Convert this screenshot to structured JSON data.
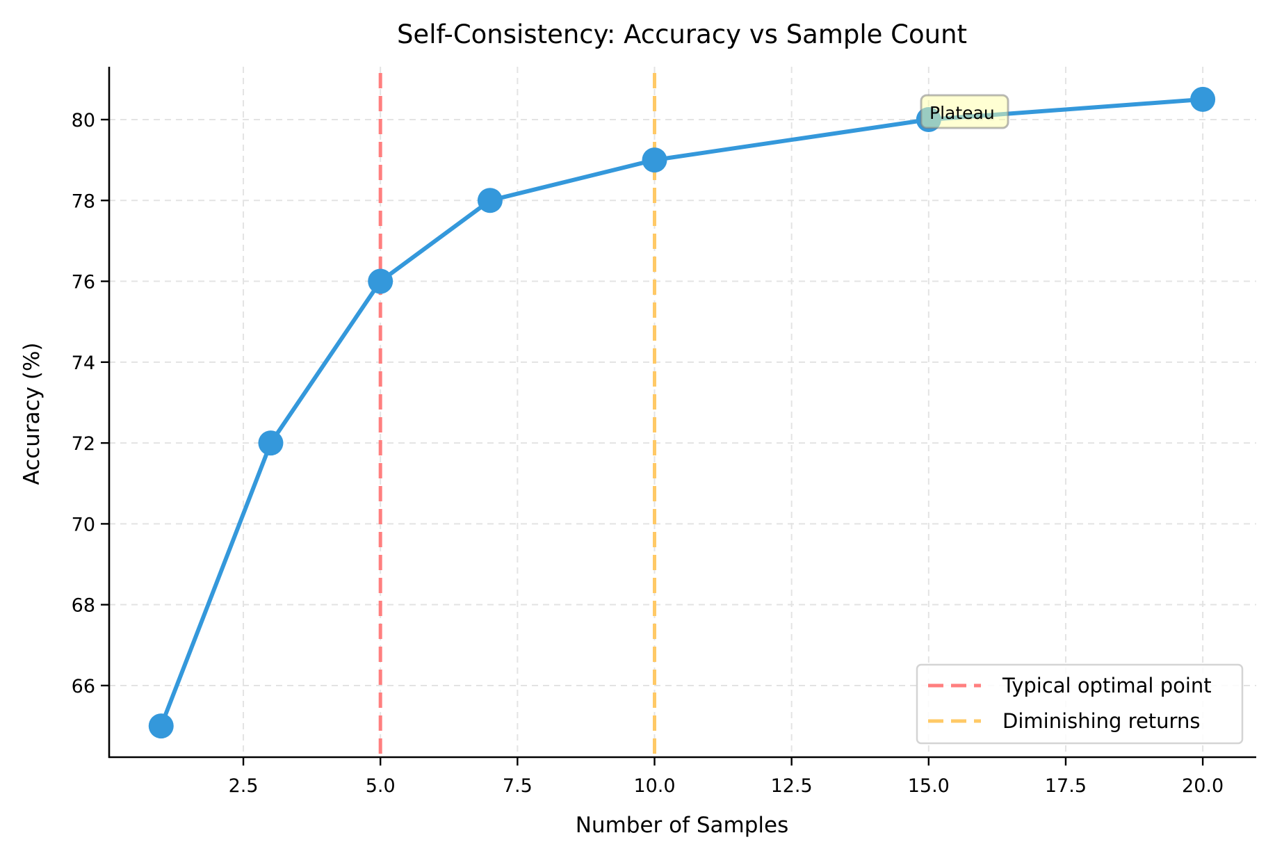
{
  "chart_data": {
    "type": "line",
    "title": "Self-Consistency: Accuracy vs Sample Count",
    "xlabel": "Number of Samples",
    "ylabel": "Accuracy (%)",
    "x": [
      1,
      3,
      5,
      7,
      10,
      15,
      20
    ],
    "series": [
      {
        "name": "Accuracy",
        "values": [
          65,
          72,
          76,
          78,
          79,
          80,
          80.5
        ],
        "color": "#3498db",
        "marker": "circle"
      }
    ],
    "xlim": [
      0.05,
      20.95
    ],
    "ylim": [
      64.25,
      81.25
    ],
    "xticks": [
      2.5,
      5.0,
      7.5,
      10.0,
      12.5,
      15.0,
      17.5,
      20.0
    ],
    "xtick_labels": [
      "2.5",
      "5.0",
      "7.5",
      "10.0",
      "12.5",
      "15.0",
      "17.5",
      "20.0"
    ],
    "yticks": [
      66,
      68,
      70,
      72,
      74,
      76,
      78,
      80
    ],
    "ytick_labels": [
      "66",
      "68",
      "70",
      "72",
      "74",
      "76",
      "78",
      "80"
    ],
    "grid": true,
    "reference_lines": [
      {
        "x": 5,
        "label": "Typical optimal point",
        "color": "#ff7f7f",
        "style": "dashed"
      },
      {
        "x": 10,
        "label": "Diminishing returns",
        "color": "#ffc966",
        "style": "dashed"
      }
    ],
    "annotations": [
      {
        "text": "Plateau",
        "x": 15,
        "y": 80,
        "box_color": "#ffffa8"
      }
    ],
    "legend": {
      "position": "lower right",
      "entries": [
        "Typical optimal point",
        "Diminishing returns"
      ]
    }
  }
}
